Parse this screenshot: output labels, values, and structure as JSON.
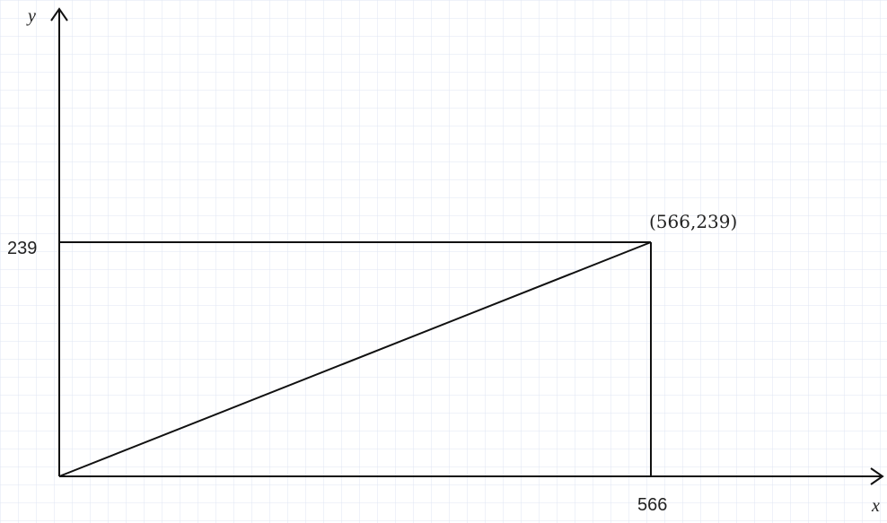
{
  "axes": {
    "x_label": "x",
    "y_label": "y"
  },
  "ticks": {
    "x_value": "566",
    "y_value": "239"
  },
  "point_label": "(566,239)",
  "geometry_data": {
    "point": {
      "x": 566,
      "y": 239
    },
    "shapes": [
      "rectangle from origin to point",
      "diagonal from origin to point"
    ]
  },
  "colors": {
    "grid": "#dfe6f3",
    "lines": "#111111",
    "background": "#ffffff"
  }
}
